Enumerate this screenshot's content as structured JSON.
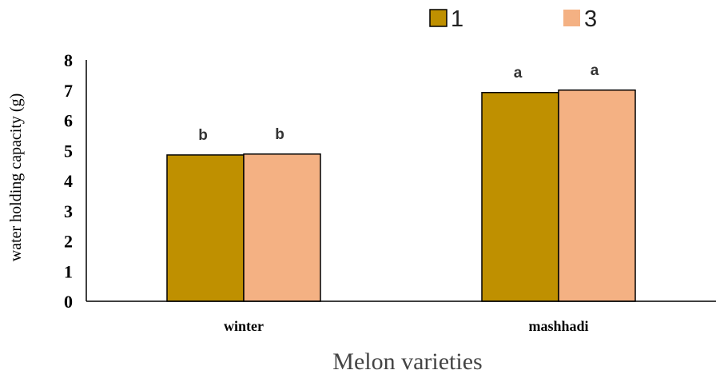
{
  "chart_data": {
    "type": "bar",
    "categories": [
      "winter",
      "mashhadi"
    ],
    "series": [
      {
        "name": "1",
        "values": [
          4.85,
          6.92
        ],
        "color": "#BF9000",
        "labels": [
          "b",
          "a"
        ]
      },
      {
        "name": "3",
        "values": [
          4.88,
          7.0
        ],
        "color": "#F4B183",
        "labels": [
          "b",
          "a"
        ]
      }
    ],
    "title": "",
    "xlabel": "Melon varieties",
    "ylabel": "water holding capacity (g)",
    "ylim": [
      0,
      8
    ],
    "yticks": [
      "0",
      "1",
      "2",
      "3",
      "4",
      "5",
      "6",
      "7",
      "8"
    ],
    "grid": false,
    "legend_position": "top-right"
  }
}
